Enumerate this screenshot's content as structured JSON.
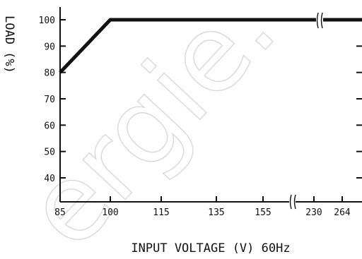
{
  "chart_data": {
    "type": "line",
    "title": "",
    "xlabel": "INPUT  VOLTAGE (V) 60Hz",
    "ylabel": "LOAD (%)",
    "x_ticks": [
      "85",
      "100",
      "115",
      "135",
      "155",
      "230",
      "264"
    ],
    "y_ticks": [
      "40",
      "50",
      "60",
      "70",
      "80",
      "90",
      "100"
    ],
    "ylim": [
      30,
      105
    ],
    "axis_break_symbol": "((",
    "series": [
      {
        "x": [
          85,
          100,
          264
        ],
        "y": [
          80,
          100,
          100
        ]
      }
    ],
    "grid": false,
    "color": "#111111"
  },
  "watermark": {
    "text": "ergie.",
    "color": "#d6d6d6"
  }
}
